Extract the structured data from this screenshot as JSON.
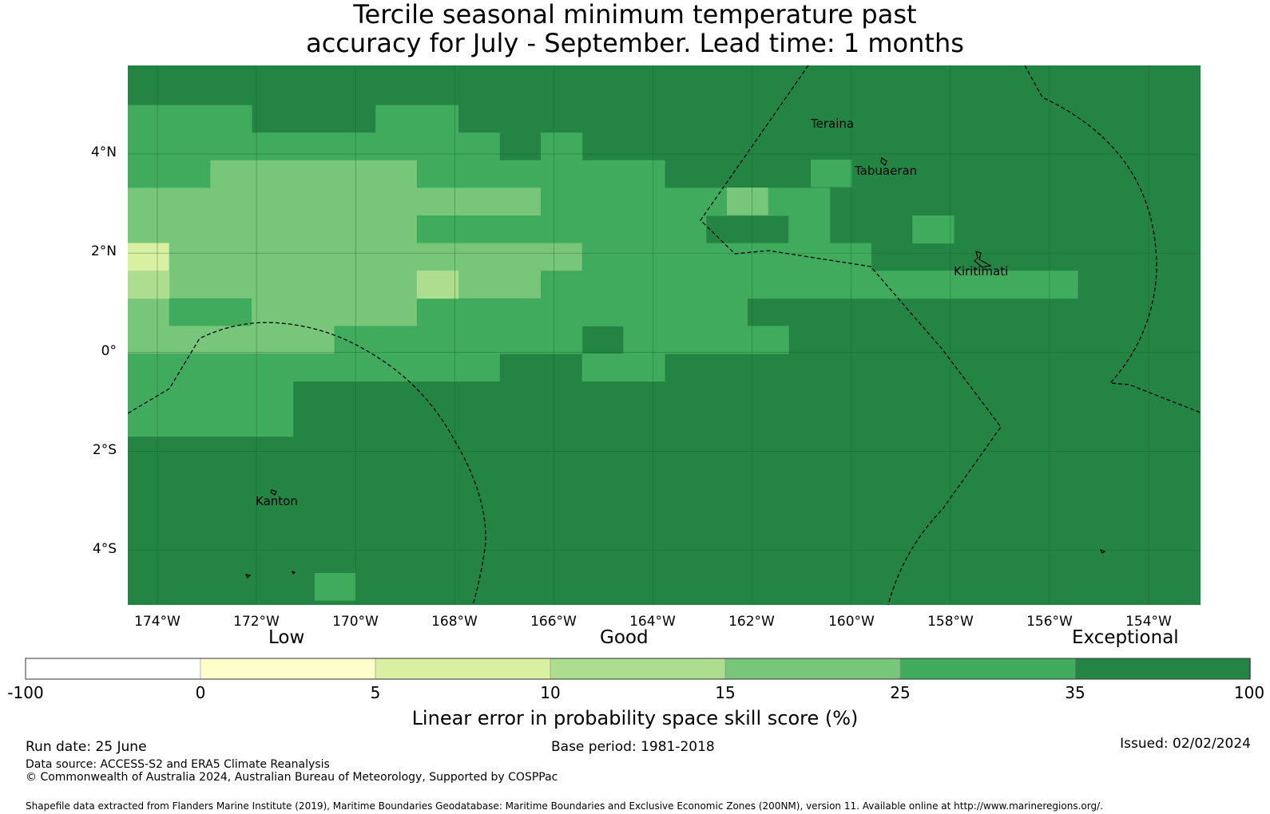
{
  "title": {
    "line1": "Tercile seasonal minimum temperature past",
    "line2": "accuracy for July - September. Lead time: 1 months"
  },
  "map": {
    "lat_labels": [
      "4°N",
      "2°N",
      "0°",
      "2°S",
      "4°S"
    ],
    "lon_labels": [
      "174°W",
      "172°W",
      "170°W",
      "168°W",
      "166°W",
      "164°W",
      "162°W",
      "160°W",
      "158°W",
      "156°W",
      "154°W"
    ],
    "places": {
      "teraina": "Teraina",
      "tabuaeran": "Tabuaeran",
      "kiritimati": "Kiritimati",
      "kanton": "Kanton"
    }
  },
  "colorbar": {
    "categories": {
      "low": "Low",
      "good": "Good",
      "exceptional": "Exceptional"
    },
    "ticks": [
      "-100",
      "0",
      "5",
      "10",
      "15",
      "25",
      "35",
      "100"
    ],
    "colors": [
      "#ffffff",
      "#ffffcc",
      "#d9f0a3",
      "#addd8e",
      "#78c679",
      "#41ab5d",
      "#238443"
    ],
    "label": "Linear error in probability space skill score (%)"
  },
  "footer": {
    "run_date": "Run date: 25 June",
    "base_period": "Base period: 1981-2018",
    "issued": "Issued: 02/02/2024",
    "data_source": "Data source: ACCESS-S2 and ERA5 Climate Reanalysis",
    "copyright": "© Commonwealth of Australia 2024, Australian Bureau of Meteorology, Supported by COSPPac",
    "shapefile": "Shapefile data extracted from Flanders Marine Institute (2019), Maritime Boundaries Geodatabase: Maritime Boundaries and Exclusive Economic Zones (200NM), version 11. Available online at http://www.marineregions.org/."
  }
}
